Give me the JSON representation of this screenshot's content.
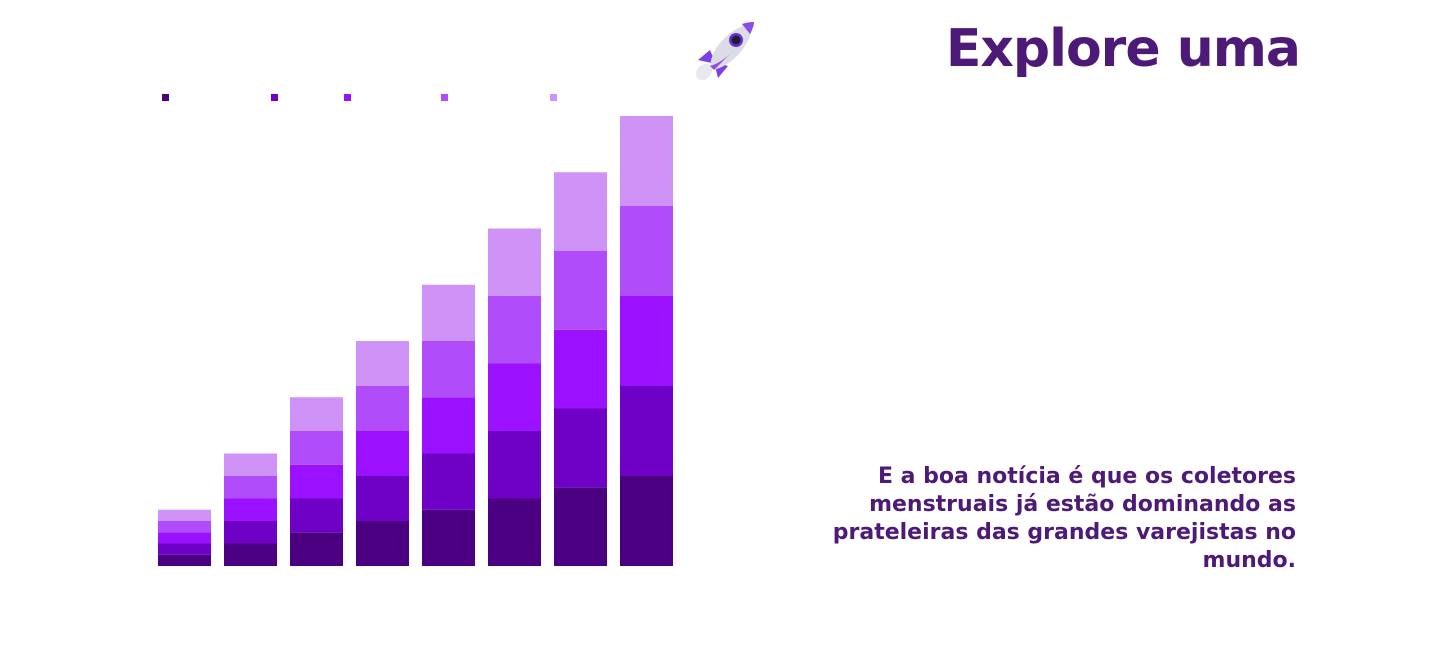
{
  "title": "Explore uma",
  "body_text": "E a boa notícia é que os coletores menstruais já estão dominando as prateleiras das grandes varejistas no mundo.",
  "colors": {
    "text": "#4e1a77",
    "segments": [
      "#4b0082",
      "#6f00c6",
      "#9b10ff",
      "#b04cfa",
      "#cf93f7"
    ]
  },
  "icons": {
    "rocket": "rocket-icon"
  },
  "chart_data": {
    "type": "bar",
    "stacked": true,
    "categories": [
      "",
      "",
      "",
      "",
      "",
      "",
      "",
      ""
    ],
    "series": [
      {
        "values": [
          1,
          2,
          3,
          4,
          5,
          6,
          7,
          8
        ]
      },
      {
        "values": [
          1,
          2,
          3,
          4,
          5,
          6,
          7,
          8
        ]
      },
      {
        "values": [
          1,
          2,
          3,
          4,
          5,
          6,
          7,
          8
        ]
      },
      {
        "values": [
          1,
          2,
          3,
          4,
          5,
          6,
          7,
          8
        ]
      },
      {
        "values": [
          1,
          2,
          3,
          4,
          5,
          6,
          7,
          8
        ]
      }
    ],
    "ylim": [
      0,
      40
    ],
    "grid": false,
    "legend": "top-left"
  }
}
